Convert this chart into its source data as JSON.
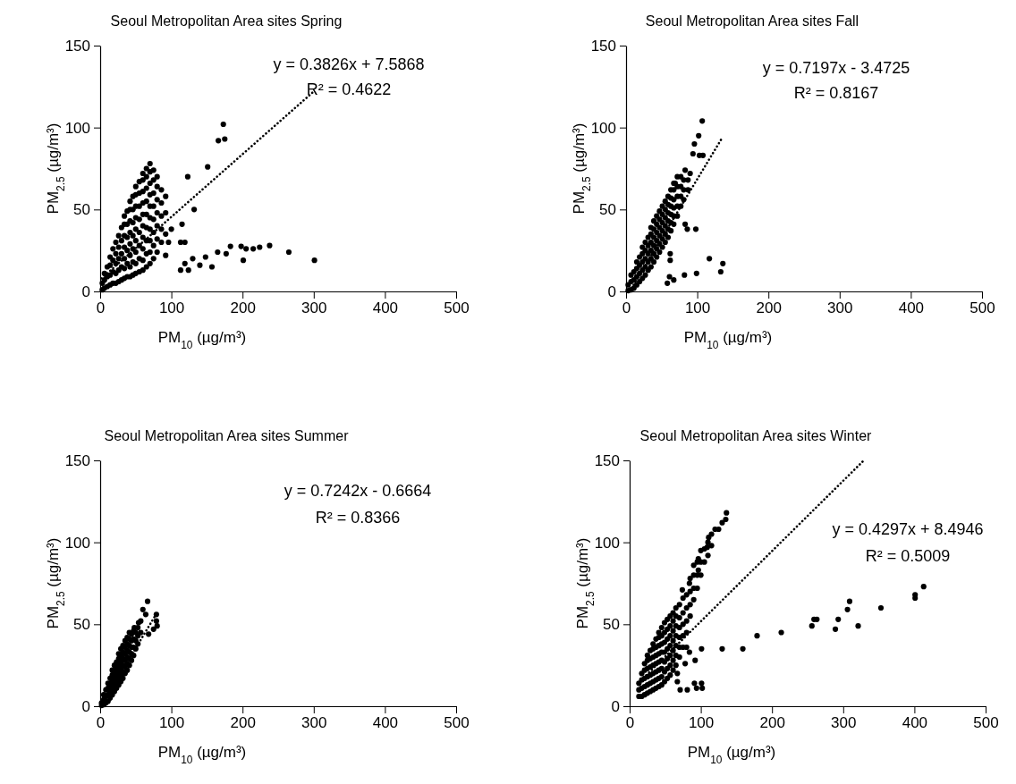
{
  "chart_data": [
    {
      "type": "scatter",
      "title": "Seoul Metropolitan Area sites Spring",
      "xlabel": "PM$_{10}$ (µg/m³)",
      "ylabel": "PM$_{2.5}$ (µg/m³)",
      "xlim": [
        0,
        500
      ],
      "xticks": [
        0,
        100,
        200,
        300,
        400,
        500
      ],
      "ylim": [
        0,
        150
      ],
      "yticks": [
        0,
        50,
        100,
        150
      ],
      "annotations": [
        "y = 0.3826x + 7.5868",
        "R² = 0.4622"
      ],
      "series": [
        {
          "marker": "circle",
          "color": "#000000",
          "x": [
            3,
            3,
            6,
            6,
            6,
            10,
            10,
            10,
            14,
            14,
            14,
            14,
            18,
            18,
            18,
            18,
            22,
            22,
            22,
            22,
            22,
            26,
            26,
            26,
            26,
            26,
            30,
            30,
            30,
            30,
            30,
            34,
            34,
            34,
            34,
            34,
            34,
            34,
            38,
            38,
            38,
            38,
            38,
            38,
            42,
            42,
            42,
            42,
            42,
            42,
            42,
            42,
            46,
            46,
            46,
            46,
            46,
            46,
            46,
            50,
            50,
            50,
            50,
            50,
            50,
            50,
            50,
            50,
            55,
            55,
            55,
            55,
            55,
            55,
            55,
            55,
            60,
            60,
            60,
            60,
            60,
            60,
            60,
            60,
            60,
            60,
            65,
            65,
            65,
            65,
            65,
            65,
            65,
            65,
            65,
            70,
            70,
            70,
            70,
            70,
            70,
            70,
            70,
            70,
            70,
            75,
            75,
            75,
            75,
            75,
            75,
            75,
            75,
            80,
            80,
            80,
            80,
            80,
            80,
            80,
            86,
            86,
            86,
            86,
            86,
            92,
            92,
            92,
            92,
            173,
            166,
            175,
            151,
            123,
            301,
            265,
            238,
            224,
            215,
            205,
            198,
            183,
            177,
            165,
            201,
            157,
            148,
            140,
            130,
            119,
            113,
            124,
            132,
            119,
            113,
            115,
            100,
            96
          ],
          "values": [
            1,
            5,
            2,
            7,
            11,
            3,
            9,
            15,
            4,
            10,
            16,
            21,
            5,
            12,
            19,
            26,
            5,
            11,
            17,
            23,
            30,
            6,
            13,
            20,
            27,
            34,
            7,
            15,
            23,
            31,
            39,
            8,
            14,
            20,
            27,
            34,
            41,
            46,
            9,
            17,
            25,
            33,
            41,
            49,
            9,
            15,
            22,
            29,
            36,
            43,
            50,
            55,
            10,
            18,
            26,
            34,
            42,
            50,
            58,
            11,
            17,
            24,
            31,
            38,
            45,
            52,
            59,
            64,
            12,
            20,
            28,
            36,
            44,
            52,
            60,
            67,
            13,
            19,
            26,
            33,
            40,
            47,
            54,
            61,
            68,
            72,
            15,
            23,
            31,
            39,
            47,
            55,
            63,
            70,
            75,
            17,
            24,
            31,
            38,
            45,
            52,
            59,
            66,
            73,
            78,
            20,
            28,
            36,
            44,
            52,
            60,
            68,
            74,
            24,
            32,
            40,
            48,
            56,
            64,
            70,
            30,
            38,
            46,
            54,
            62,
            22,
            35,
            48,
            58,
            102,
            92,
            93,
            76,
            70,
            19,
            24,
            28,
            27,
            26,
            26,
            27.5,
            27.5,
            23,
            24,
            19,
            15,
            21,
            16,
            20,
            17,
            13,
            13,
            50,
            30,
            30,
            41,
            38,
            30
          ]
        },
        {
          "type": "line",
          "marker": "none",
          "line_style": "dotted",
          "color": "#000000",
          "x": [
            2,
            300
          ],
          "values": [
            8,
            122
          ]
        }
      ]
    },
    {
      "type": "scatter",
      "title": "Seoul Metropolitan Area sites Fall",
      "xlabel": "PM$_{10}$ (µg/m³)",
      "ylabel": "PM$_{2.5}$ (µg/m³)",
      "xlim": [
        0,
        500
      ],
      "xticks": [
        0,
        100,
        200,
        300,
        400,
        500
      ],
      "ylim": [
        0,
        150
      ],
      "yticks": [
        0,
        50,
        100,
        150
      ],
      "annotations": [
        "y = 0.7197x - 3.4725",
        "R² = 0.8167"
      ],
      "series": [
        {
          "marker": "circle",
          "color": "#000000",
          "x": [
            3,
            3,
            7,
            7,
            7,
            11,
            11,
            11,
            15,
            15,
            15,
            15,
            19,
            19,
            19,
            19,
            23,
            23,
            23,
            23,
            23,
            27,
            27,
            27,
            27,
            27,
            31,
            31,
            31,
            31,
            31,
            35,
            35,
            35,
            35,
            35,
            35,
            39,
            39,
            39,
            39,
            39,
            39,
            43,
            43,
            43,
            43,
            43,
            43,
            47,
            47,
            47,
            47,
            47,
            47,
            51,
            51,
            51,
            51,
            51,
            51,
            55,
            55,
            55,
            55,
            55,
            55,
            59,
            59,
            59,
            59,
            59,
            59,
            63,
            63,
            63,
            63,
            63,
            63,
            67,
            67,
            67,
            67,
            67,
            67,
            72,
            72,
            72,
            72,
            72,
            77,
            77,
            77,
            77,
            81,
            81,
            81,
            87,
            87,
            107,
            102,
            96,
            94,
            103,
            108,
            83,
            90,
            69,
            83,
            86,
            98,
            117,
            136,
            133,
            99,
            82,
            67,
            58,
            62,
            62,
            61
          ],
          "values": [
            0.5,
            4,
            1,
            6,
            10,
            2,
            7,
            12,
            4,
            9,
            14,
            18,
            6,
            11,
            16,
            21,
            8,
            13,
            18,
            23,
            27,
            10,
            15,
            20,
            25,
            30,
            13,
            18,
            23,
            28,
            33,
            15,
            20,
            25,
            30,
            35,
            39,
            18,
            23,
            28,
            33,
            38,
            43,
            21,
            26,
            31,
            36,
            41,
            46,
            24,
            29,
            34,
            39,
            44,
            49,
            27,
            32,
            37,
            42,
            47,
            52,
            30,
            35,
            40,
            45,
            50,
            55,
            33,
            38,
            43,
            48,
            53,
            58,
            37,
            42,
            47,
            52,
            57,
            62,
            41,
            46,
            51,
            56,
            62,
            66,
            46,
            52,
            58,
            64,
            70,
            52,
            58,
            64,
            70,
            56,
            62,
            68,
            62,
            68,
            104,
            95,
            90,
            84,
            83,
            83,
            74,
            72,
            66,
            41,
            38,
            38,
            20,
            17,
            12,
            11,
            10,
            7,
            5,
            19,
            23,
            9
          ]
        },
        {
          "type": "line",
          "marker": "none",
          "line_style": "dotted",
          "color": "#000000",
          "x": [
            5,
            134
          ],
          "values": [
            0,
            93
          ]
        }
      ]
    },
    {
      "type": "scatter",
      "title": "Seoul Metropolitan Area sites Summer",
      "xlabel": "PM$_{10}$ (µg/m³)",
      "ylabel": "PM$_{2.5}$ (µg/m³)",
      "xlim": [
        0,
        500
      ],
      "xticks": [
        0,
        100,
        200,
        300,
        400,
        500
      ],
      "ylim": [
        0,
        150
      ],
      "yticks": [
        0,
        50,
        100,
        150
      ],
      "annotations": [
        "y = 0.7242x - 0.6664",
        "R² = 0.8366"
      ],
      "series": [
        {
          "marker": "circle",
          "color": "#000000",
          "x": [
            2,
            2,
            5,
            5,
            5,
            8,
            8,
            8,
            11,
            11,
            11,
            11,
            14,
            14,
            14,
            14,
            17,
            17,
            17,
            17,
            17,
            20,
            20,
            20,
            20,
            20,
            23,
            23,
            23,
            23,
            23,
            26,
            26,
            26,
            26,
            26,
            26,
            29,
            29,
            29,
            29,
            29,
            29,
            32,
            32,
            32,
            32,
            32,
            32,
            35,
            35,
            35,
            35,
            35,
            35,
            38,
            38,
            38,
            38,
            38,
            38,
            41,
            41,
            41,
            41,
            41,
            41,
            44,
            44,
            44,
            44,
            44,
            47,
            47,
            47,
            47,
            50,
            50,
            50,
            53,
            53,
            53,
            57,
            57,
            66.6,
            60,
            54,
            64,
            79,
            79,
            80,
            75,
            68,
            48
          ],
          "values": [
            0.5,
            2,
            1,
            4,
            7,
            2,
            6,
            10,
            3,
            7,
            11,
            14,
            5,
            9,
            13,
            17,
            7,
            11,
            15,
            19,
            22,
            9,
            13,
            17,
            21,
            25,
            11,
            15,
            19,
            23,
            27,
            13,
            17,
            21,
            25,
            29,
            32,
            15,
            19,
            23,
            27,
            31,
            35,
            17,
            21,
            25,
            29,
            33,
            37,
            20,
            24,
            28,
            32,
            36,
            40,
            22,
            26,
            30,
            34,
            38,
            42,
            25,
            29,
            33,
            37,
            41,
            45,
            28,
            32,
            36,
            40,
            44,
            31,
            36,
            41,
            46,
            35,
            40,
            45,
            38,
            43,
            48,
            45,
            52,
            64,
            59,
            51,
            56,
            56,
            52,
            49,
            47,
            44,
            48
          ]
        },
        {
          "type": "line",
          "marker": "none",
          "line_style": "dotted",
          "color": "#000000",
          "x": [
            1,
            77
          ],
          "values": [
            0,
            55
          ]
        }
      ]
    },
    {
      "type": "scatter",
      "title": "Seoul Metropolitan Area sites Winter",
      "xlabel": "PM$_{10}$ (µg/m³)",
      "ylabel": "PM$_{2.5}$ (µg/m³)",
      "xlim": [
        0,
        500
      ],
      "xticks": [
        0,
        100,
        200,
        300,
        400,
        500
      ],
      "ylim": [
        0,
        150
      ],
      "yticks": [
        0,
        50,
        100,
        150
      ],
      "annotations": [
        "y = 0.4297x + 8.4946",
        "R² = 0.5009"
      ],
      "series": [
        {
          "marker": "circle",
          "color": "#000000",
          "x": [
            13,
            13,
            13,
            17,
            17,
            17,
            17,
            21,
            21,
            21,
            21,
            21,
            25,
            25,
            25,
            25,
            25,
            25,
            29,
            29,
            29,
            29,
            29,
            29,
            33,
            33,
            33,
            33,
            33,
            33,
            33,
            37,
            37,
            37,
            37,
            37,
            37,
            37,
            41,
            41,
            41,
            41,
            41,
            41,
            41,
            41,
            45,
            45,
            45,
            45,
            45,
            45,
            45,
            45,
            49,
            49,
            49,
            49,
            49,
            49,
            49,
            53,
            53,
            53,
            53,
            53,
            53,
            53,
            57,
            57,
            57,
            57,
            57,
            57,
            57,
            61,
            61,
            61,
            61,
            61,
            61,
            61,
            65,
            65,
            65,
            65,
            65,
            65,
            65,
            70,
            70,
            70,
            70,
            70,
            70,
            75,
            75,
            75,
            75,
            75,
            80,
            80,
            80,
            80,
            85,
            85,
            85,
            85,
            90,
            90,
            90,
            90,
            95,
            95,
            95,
            100,
            100,
            100,
            105,
            105,
            110,
            110,
            115,
            115,
            125,
            130,
            136,
            135,
            120,
            111,
            109,
            96.5,
            96.5,
            74,
            84,
            413,
            401,
            401,
            353,
            309,
            306,
            293,
            289,
            321,
            263,
            259,
            256,
            213,
            179,
            159,
            130,
            101,
            80,
            84,
            78,
            92,
            91,
            101,
            102,
            94,
            81,
            71,
            67,
            67
          ],
          "values": [
            6,
            10,
            14,
            6,
            11,
            16,
            20,
            7,
            12,
            17,
            22,
            26,
            8,
            13,
            18,
            23,
            28,
            31,
            9,
            14,
            19,
            24,
            29,
            34,
            10,
            15,
            20,
            25,
            30,
            35,
            38,
            11,
            16,
            21,
            26,
            31,
            36,
            41,
            12,
            17,
            22,
            27,
            32,
            37,
            42,
            45,
            13,
            18,
            23,
            28,
            33,
            38,
            43,
            48,
            15,
            21,
            27,
            33,
            39,
            45,
            51,
            17,
            23,
            29,
            35,
            41,
            47,
            53,
            19,
            25,
            31,
            37,
            43,
            49,
            55,
            22,
            28,
            34,
            40,
            46,
            52,
            57,
            25,
            31,
            37,
            43,
            49,
            55,
            60,
            30,
            36,
            42,
            48,
            54,
            62,
            36,
            43,
            50,
            57,
            66,
            45,
            52,
            60,
            68,
            55,
            62,
            70,
            78,
            65,
            72,
            80,
            86,
            72,
            80,
            88,
            80,
            88,
            95,
            88,
            96,
            92,
            100,
            98,
            105,
            108,
            112,
            118,
            114,
            108,
            103,
            97,
            90,
            83,
            71,
            75,
            73,
            68,
            66,
            60,
            64,
            59,
            53,
            47,
            49,
            53,
            53,
            49,
            45,
            43,
            35,
            35,
            35,
            36,
            33,
            26,
            28,
            14,
            14,
            11,
            11,
            10,
            10,
            15,
            20
          ]
        },
        {
          "type": "line",
          "marker": "none",
          "line_style": "dotted",
          "color": "#000000",
          "x": [
            12,
            329
          ],
          "values": [
            14,
            150
          ]
        }
      ]
    }
  ]
}
